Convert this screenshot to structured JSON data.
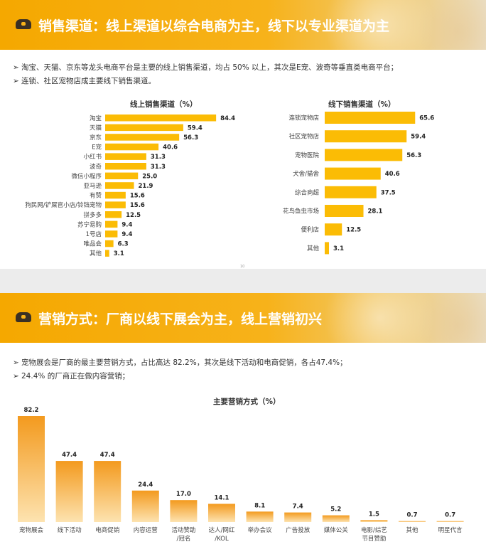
{
  "slide1": {
    "banner_title": "销售渠道：线上渠道以综合电商为主，线下以专业渠道为主",
    "bullets": [
      "淘宝、天猫、京东等龙头电商平台是主要的线上销售渠道，均占 50% 以上，其次是E宠、波奇等垂直类电商平台；",
      "连锁、社区宠物店成主要线下销售渠道。"
    ],
    "page_number": "10"
  },
  "slide2": {
    "banner_title": "营销方式：厂商以线下展会为主，线上营销初兴",
    "bullets": [
      "宠物展会是厂商的最主要营销方式，占比高达 82.2%，其次是线下活动和电商促销，各占47.4%；",
      "24.4% 的厂商正在做内容营销；"
    ]
  },
  "colors": {
    "bar": "#fbbc05",
    "bar_dark": "#f39a1e",
    "bar_light": "#fde3b0",
    "banner": "#f7b21a"
  },
  "chart_data": [
    {
      "type": "bar",
      "orientation": "horizontal",
      "title": "线上销售渠道（%）",
      "categories": [
        "淘宝",
        "天猫",
        "京东",
        "E宠",
        "小红书",
        "波奇",
        "微信小程序",
        "亚马逊",
        "有赞",
        "狗民网/铲屎官小店/铃铛宠物",
        "拼多多",
        "苏宁易购",
        "1号店",
        "唯品会",
        "其他"
      ],
      "values": [
        84.4,
        59.4,
        56.3,
        40.6,
        31.3,
        31.3,
        25.0,
        21.9,
        15.6,
        15.6,
        12.5,
        9.4,
        9.4,
        6.3,
        3.1
      ],
      "value_labels": [
        "84.4",
        "59.4",
        "56.3",
        "40.6",
        "31.3",
        "31.3",
        "25.0",
        "21.9",
        "15.6",
        "15.6",
        "12.5",
        "9.4",
        "9.4",
        "6.3",
        "3.1"
      ],
      "xlim": [
        0,
        100
      ]
    },
    {
      "type": "bar",
      "orientation": "horizontal",
      "title": "线下销售渠道（%）",
      "categories": [
        "连锁宠物店",
        "社区宠物店",
        "宠物医院",
        "犬舍/猫舍",
        "综合商超",
        "花鸟鱼虫市场",
        "便利店",
        "其他"
      ],
      "values": [
        65.6,
        59.4,
        56.3,
        40.6,
        37.5,
        28.1,
        12.5,
        3.1
      ],
      "value_labels": [
        "65.6",
        "59.4",
        "56.3",
        "40.6",
        "37.5",
        "28.1",
        "12.5",
        "3.1"
      ],
      "xlim": [
        0,
        100
      ]
    },
    {
      "type": "bar",
      "orientation": "vertical",
      "title": "主要营销方式（%）",
      "categories": [
        "宠物展会",
        "线下活动",
        "电商促销",
        "内容运营",
        "活动赞助\n/冠名",
        "达人/网红\n/KOL",
        "举办会议",
        "广告投放",
        "媒体公关",
        "电影/综艺\n节目赞助",
        "其他",
        "明星代言"
      ],
      "values": [
        82.2,
        47.4,
        47.4,
        24.4,
        17.0,
        14.1,
        8.1,
        7.4,
        5.2,
        1.5,
        0.7,
        0.7
      ],
      "value_labels": [
        "82.2",
        "47.4",
        "47.4",
        "24.4",
        "17.0",
        "14.1",
        "8.1",
        "7.4",
        "5.2",
        "1.5",
        "0.7",
        "0.7"
      ],
      "ylim": [
        0,
        100
      ]
    }
  ]
}
